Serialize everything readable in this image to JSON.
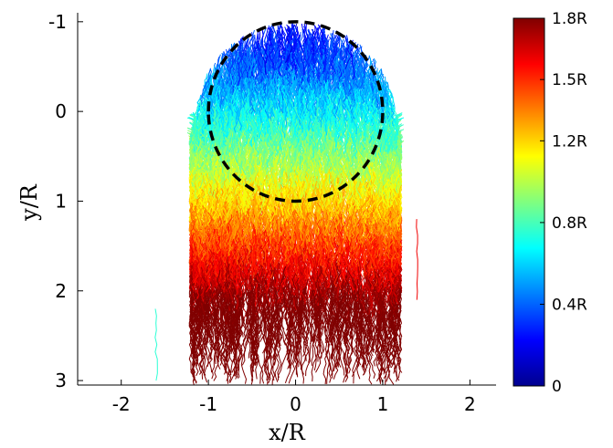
{
  "chart_data": {
    "type": "line",
    "title": "",
    "xlabel": "x/R",
    "ylabel": "y/R",
    "xlim": [
      -2.5,
      2.3
    ],
    "ylim": [
      3.05,
      -1.1
    ],
    "y_axis_reversed": true,
    "x_ticks": [
      {
        "value": -2,
        "label": "-2"
      },
      {
        "value": -1,
        "label": "-1"
      },
      {
        "value": 0,
        "label": "0"
      },
      {
        "value": 1,
        "label": "1"
      },
      {
        "value": 2,
        "label": "2"
      }
    ],
    "y_ticks": [
      {
        "value": -1,
        "label": "-1"
      },
      {
        "value": 0,
        "label": "0"
      },
      {
        "value": 1,
        "label": "1"
      },
      {
        "value": 2,
        "label": "2"
      },
      {
        "value": 3,
        "label": "3"
      }
    ],
    "grid": false,
    "reference_circle": {
      "center_x": 0,
      "center_y": 0,
      "radius": 1,
      "style": "dashed",
      "color": "#000000"
    },
    "colormap": "jet",
    "colorbar": {
      "min": 0,
      "max": 1.8,
      "ticks": [
        {
          "value": 0,
          "label": "0"
        },
        {
          "value": 0.4,
          "label": "0.4R"
        },
        {
          "value": 0.8,
          "label": "0.8R"
        },
        {
          "value": 1.2,
          "label": "1.2R"
        },
        {
          "value": 1.5,
          "label": "1.5R"
        },
        {
          "value": 1.8,
          "label": "1.8R"
        }
      ]
    },
    "trajectories_description_hidden": true,
    "trajectories": {
      "count": 900,
      "x_range": [
        -1.35,
        1.35
      ],
      "start_y_range": [
        -1.0,
        3.0
      ]
    }
  }
}
